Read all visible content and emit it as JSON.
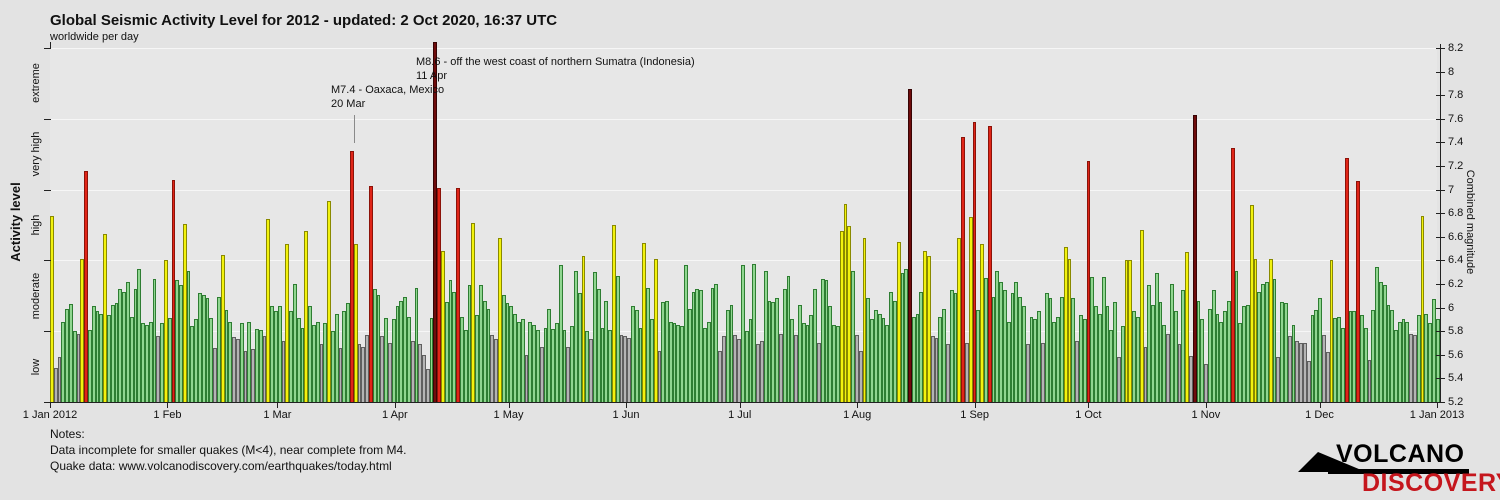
{
  "header": {
    "title": "Global Seismic Activity Level for 2012 - updated:  2 Oct 2020, 16:37 UTC",
    "subtitle": "worldwide per day"
  },
  "notes": {
    "line1": "Notes:",
    "line2": "Data incomplete for smaller quakes (M<4), near complete from M4.",
    "line3": "Quake data: www.volcanodiscovery.com/earthquakes/today.html"
  },
  "logo": {
    "line1": "VOLCANO",
    "line2": "DISCOVERY",
    "accent_color": "#c5161d"
  },
  "chart_data": {
    "type": "bar",
    "title": "Global Seismic Activity Level for 2012",
    "x_unit": "day of year 2012",
    "ylabel_left": "Activity level",
    "ylabel_right": "Combined magnitude",
    "ylim": [
      5.2,
      8.2
    ],
    "ytick_step": 0.2,
    "gridline_step": 0.6,
    "grid": true,
    "background": "#e7e7e7",
    "levels": [
      {
        "name": "low",
        "min": 5.2,
        "max": 5.8,
        "fill": "#b4b4b4",
        "stroke": "#5f5f5f"
      },
      {
        "name": "moderate",
        "min": 5.8,
        "max": 6.4,
        "fill": "#90d690",
        "stroke": "#2e7d32"
      },
      {
        "name": "high",
        "min": 6.4,
        "max": 7.0,
        "fill": "#f2f20e",
        "stroke": "#8a8a00"
      },
      {
        "name": "very high",
        "min": 7.0,
        "max": 7.6,
        "fill": "#e02518",
        "stroke": "#8c1309"
      },
      {
        "name": "extreme",
        "min": 7.6,
        "max": 9.0,
        "fill": "#6f0c0c",
        "stroke": "#380404"
      }
    ],
    "months": [
      {
        "label": "1 Jan 2012",
        "day": 0
      },
      {
        "label": "1 Feb",
        "day": 31
      },
      {
        "label": "1 Mar",
        "day": 60
      },
      {
        "label": "1 Apr",
        "day": 91
      },
      {
        "label": "1 May",
        "day": 121
      },
      {
        "label": "1 Jun",
        "day": 152
      },
      {
        "label": "1 Jul",
        "day": 182
      },
      {
        "label": "1 Aug",
        "day": 213
      },
      {
        "label": "1 Sep",
        "day": 244
      },
      {
        "label": "1 Oct",
        "day": 274
      },
      {
        "label": "1 Nov",
        "day": 305
      },
      {
        "label": "1 Dec",
        "day": 335
      },
      {
        "label": "1 Jan 2013",
        "day": 366
      }
    ],
    "values": [
      6.78,
      5.49,
      5.58,
      5.88,
      5.99,
      6.03,
      5.8,
      5.78,
      6.41,
      7.16,
      5.81,
      6.01,
      5.97,
      5.95,
      6.62,
      5.94,
      6.02,
      6.04,
      6.16,
      6.13,
      6.22,
      5.92,
      6.16,
      6.33,
      5.87,
      5.85,
      5.88,
      6.24,
      5.76,
      5.87,
      6.4,
      5.91,
      7.08,
      6.23,
      6.19,
      6.71,
      6.31,
      5.84,
      5.9,
      6.12,
      6.11,
      6.08,
      5.91,
      5.66,
      6.09,
      6.45,
      5.98,
      5.88,
      5.75,
      5.73,
      5.87,
      5.63,
      5.88,
      5.65,
      5.82,
      5.81,
      5.76,
      6.75,
      6.01,
      5.97,
      6.01,
      5.72,
      6.54,
      5.97,
      6.2,
      5.91,
      5.83,
      6.65,
      6.01,
      5.85,
      5.88,
      5.69,
      5.87,
      6.9,
      5.8,
      5.95,
      5.66,
      5.97,
      6.04,
      7.33,
      6.54,
      5.69,
      5.67,
      5.77,
      7.03,
      6.16,
      6.11,
      5.76,
      5.91,
      5.7,
      5.9,
      6.01,
      6.06,
      6.09,
      5.92,
      5.72,
      6.17,
      5.69,
      5.6,
      5.48,
      5.91,
      8.25,
      7.01,
      6.48,
      6.05,
      6.23,
      6.13,
      7.01,
      5.92,
      5.81,
      6.19,
      6.72,
      5.94,
      6.19,
      6.06,
      5.99,
      5.77,
      5.73,
      6.59,
      6.11,
      6.04,
      6.01,
      5.95,
      5.88,
      5.9,
      5.6,
      5.88,
      5.85,
      5.81,
      5.67,
      5.83,
      5.99,
      5.82,
      5.87,
      6.36,
      5.81,
      5.67,
      5.84,
      6.31,
      6.12,
      6.44,
      5.8,
      5.73,
      6.3,
      6.16,
      5.83,
      6.06,
      5.81,
      6.7,
      6.27,
      5.77,
      5.76,
      5.74,
      6.01,
      5.98,
      5.83,
      6.55,
      6.17,
      5.9,
      6.41,
      5.63,
      6.05,
      6.06,
      5.88,
      5.87,
      5.85,
      5.84,
      6.36,
      5.99,
      6.13,
      6.16,
      6.15,
      5.83,
      5.88,
      6.17,
      6.2,
      5.63,
      5.76,
      5.98,
      6.02,
      5.77,
      5.73,
      6.36,
      5.8,
      5.9,
      6.37,
      5.69,
      5.72,
      6.31,
      6.06,
      6.05,
      6.08,
      5.78,
      6.16,
      6.27,
      5.9,
      5.77,
      6.02,
      5.87,
      5.85,
      5.94,
      6.16,
      5.7,
      6.24,
      6.23,
      6.01,
      5.85,
      5.84,
      6.65,
      6.88,
      6.69,
      6.31,
      5.77,
      5.63,
      6.59,
      6.08,
      5.9,
      5.98,
      5.95,
      5.91,
      5.85,
      6.13,
      6.06,
      6.56,
      6.29,
      6.33,
      7.85,
      5.92,
      5.95,
      6.13,
      6.48,
      6.44,
      5.76,
      5.74,
      5.92,
      5.99,
      5.69,
      6.15,
      6.12,
      6.59,
      7.45,
      5.7,
      6.77,
      7.57,
      5.98,
      6.54,
      6.25,
      7.54,
      6.09,
      6.31,
      6.22,
      6.15,
      5.88,
      6.12,
      6.22,
      6.09,
      6.01,
      5.69,
      5.92,
      5.9,
      5.97,
      5.7,
      6.12,
      6.08,
      5.88,
      5.92,
      6.09,
      6.51,
      6.41,
      6.08,
      5.72,
      5.94,
      5.9,
      7.24,
      6.26,
      6.01,
      5.95,
      6.26,
      6.01,
      5.81,
      6.05,
      5.58,
      5.84,
      6.4,
      6.4,
      5.97,
      5.92,
      6.66,
      5.67,
      6.19,
      6.02,
      6.29,
      6.05,
      5.85,
      5.78,
      6.2,
      5.97,
      5.69,
      6.15,
      6.47,
      5.59,
      7.63,
      6.06,
      5.9,
      5.52,
      5.99,
      6.15,
      5.95,
      5.88,
      5.97,
      6.06,
      7.35,
      6.31,
      5.87,
      6.01,
      6.02,
      6.87,
      6.41,
      6.13,
      6.2,
      6.22,
      6.41,
      6.24,
      5.58,
      6.05,
      6.04,
      5.76,
      5.85,
      5.72,
      5.7,
      5.7,
      5.55,
      5.94,
      5.98,
      6.08,
      5.77,
      5.62,
      6.4,
      5.91,
      5.92,
      5.83,
      7.27,
      5.97,
      5.97,
      7.07,
      5.94,
      5.83,
      5.56,
      5.98,
      6.34,
      6.22,
      6.19,
      6.02,
      5.98,
      5.81,
      5.88,
      5.9,
      5.88,
      5.78,
      5.77,
      5.94,
      6.78,
      5.95,
      5.87,
      6.07,
      5.9
    ],
    "annotations": [
      {
        "line1": "M8.6 - off the west coast of northern Sumatra (Indonesia)",
        "line2": "11 Apr"
      },
      {
        "line1": "M7.4 - Oaxaca, Mexico",
        "line2": "20 Mar"
      }
    ]
  }
}
